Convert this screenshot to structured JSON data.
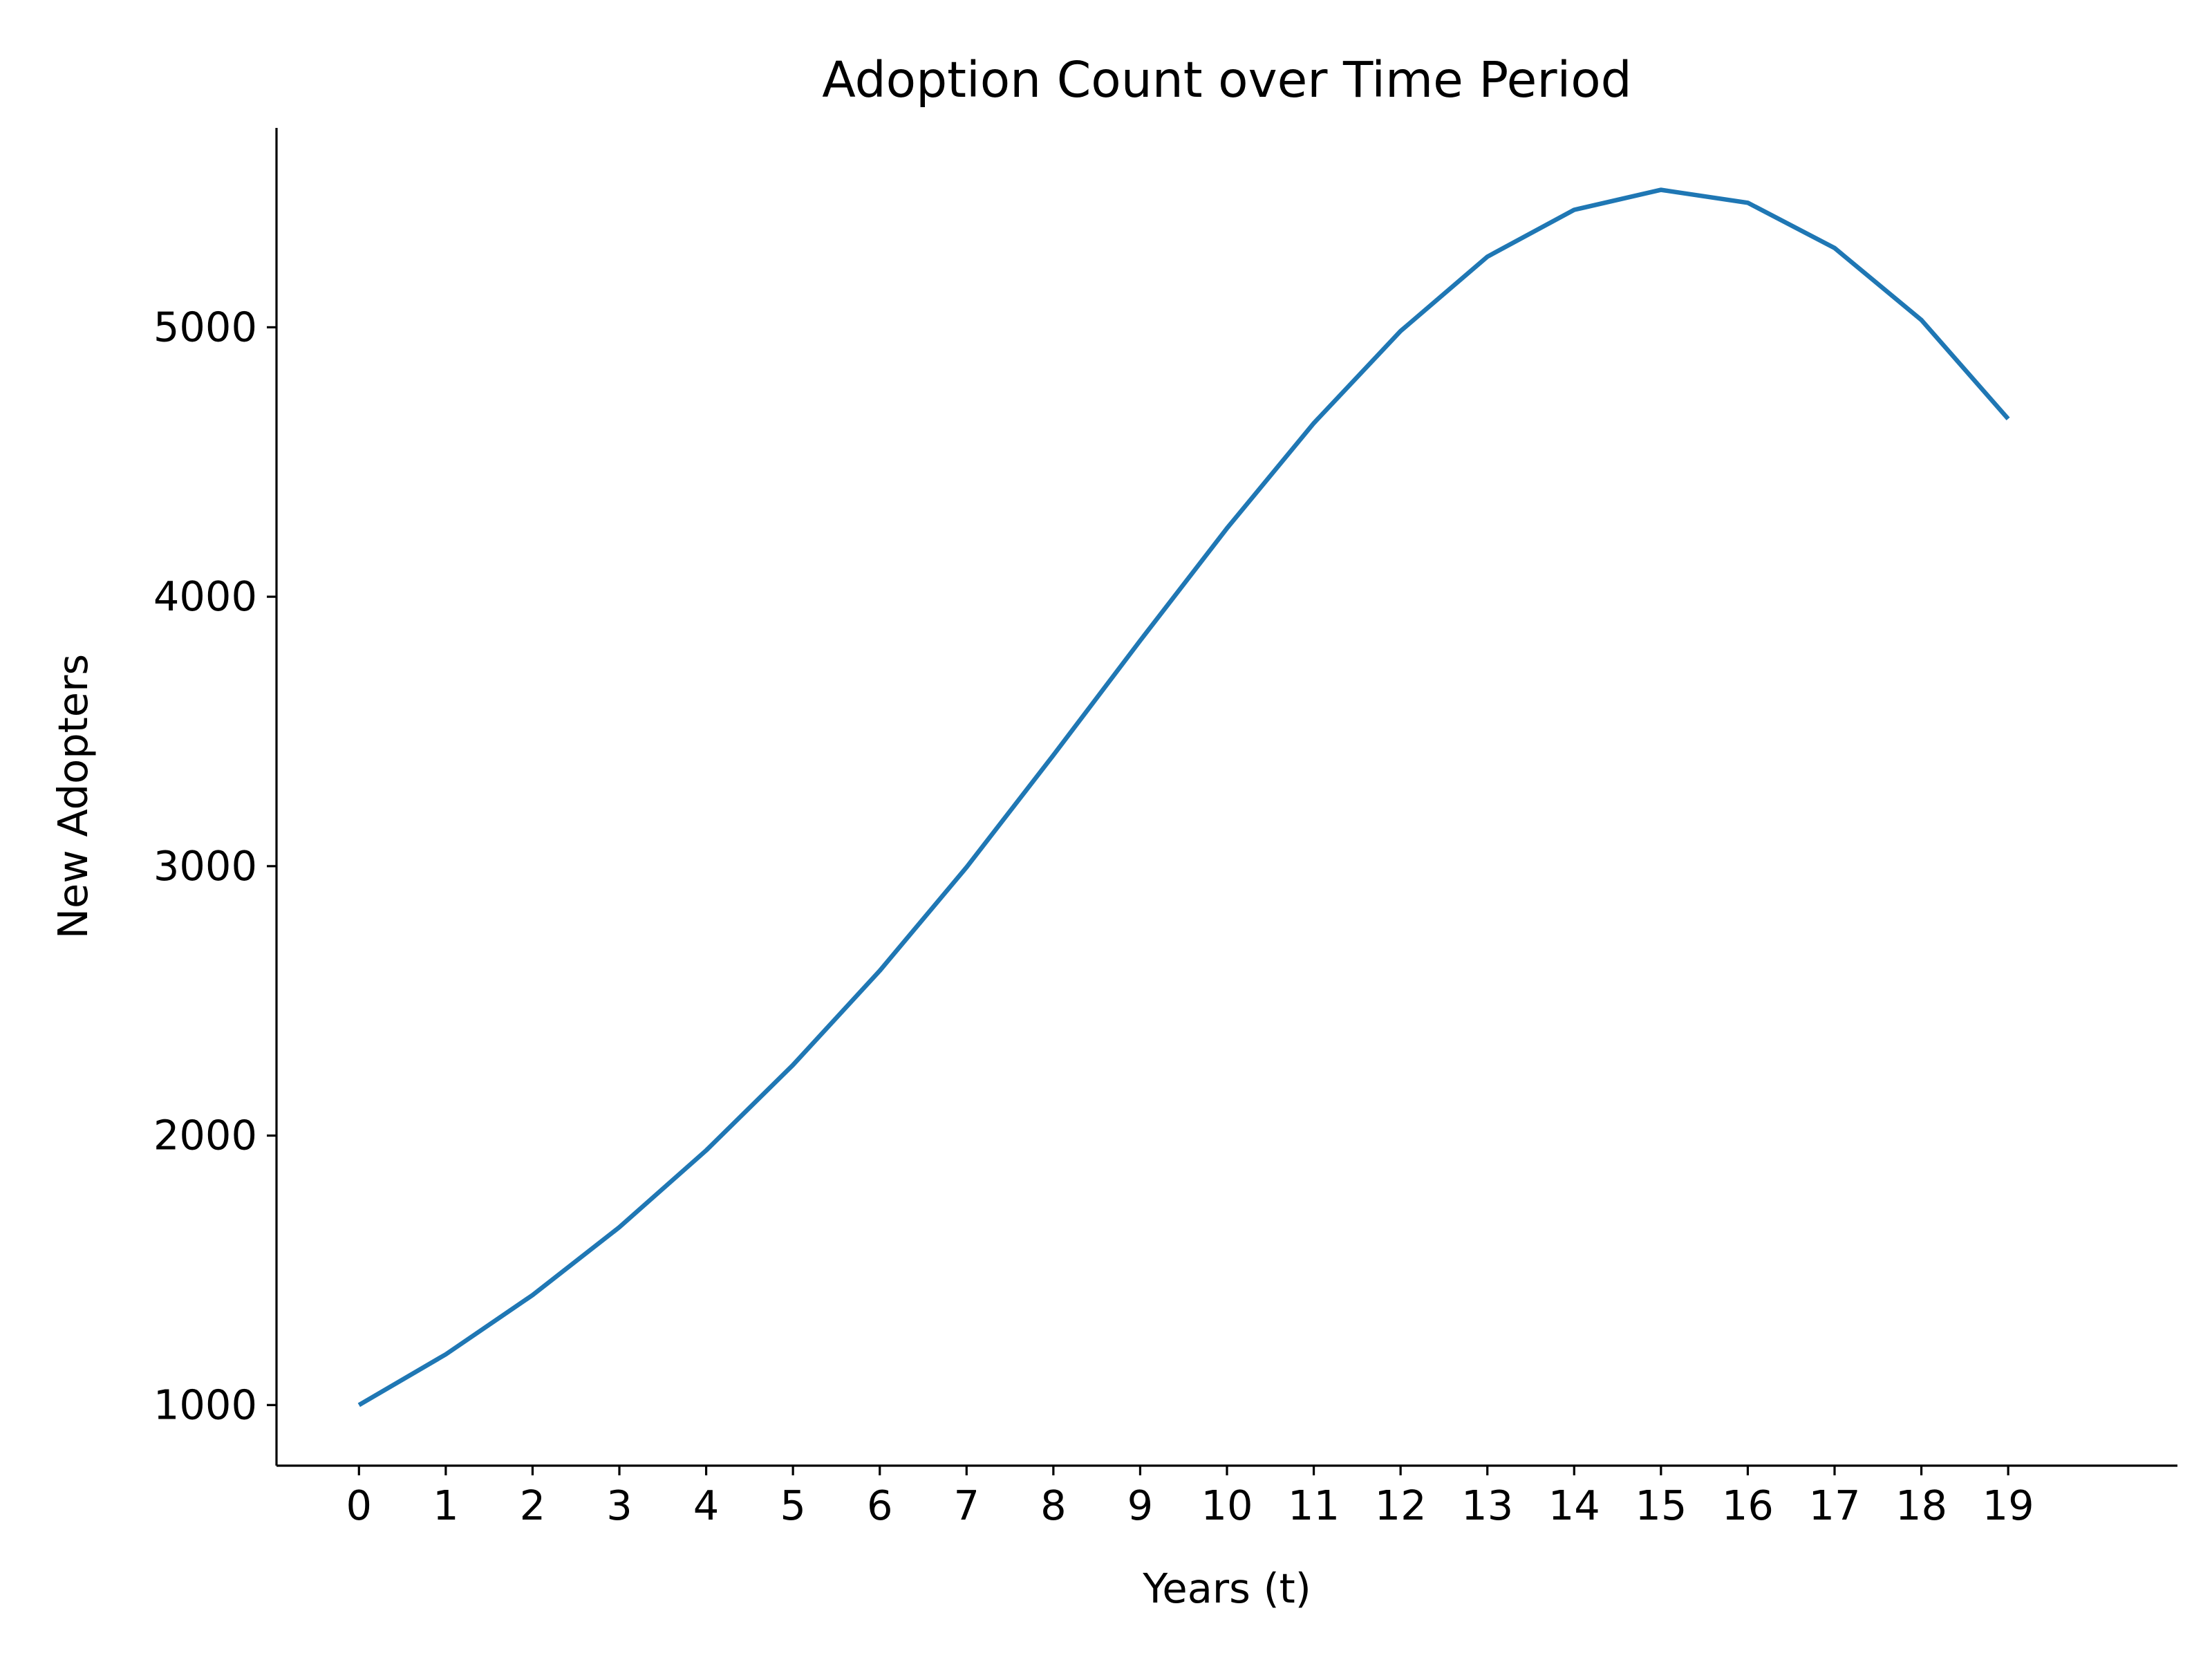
{
  "chart_data": {
    "type": "line",
    "title": "Adoption Count over Time Period",
    "xlabel": "Years (t)",
    "ylabel": "New Adopters",
    "x": [
      0,
      1,
      2,
      3,
      4,
      5,
      6,
      7,
      8,
      9,
      10,
      11,
      12,
      13,
      14,
      15,
      16,
      17,
      18,
      19
    ],
    "series": [
      {
        "color": "#1f77b4",
        "values": [
          1000,
          1188,
          1408,
          1660,
          1945,
          2262,
          2612,
          2996,
          3412,
          3837,
          4254,
          4644,
          4986,
          5262,
          5436,
          5510,
          5462,
          5294,
          5027,
          4660
        ]
      }
    ],
    "xticks": [
      "0",
      "1",
      "2",
      "3",
      "4",
      "5",
      "6",
      "7",
      "8",
      "9",
      "10",
      "11",
      "12",
      "13",
      "14",
      "15",
      "16",
      "17",
      "18",
      "19"
    ],
    "yticks": [
      1000,
      2000,
      3000,
      4000,
      5000
    ],
    "xlim": [
      -0.95,
      20.95
    ],
    "ylim": [
      775,
      5740
    ],
    "grid": false,
    "legend": false
  }
}
